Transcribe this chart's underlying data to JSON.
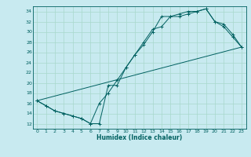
{
  "xlabel": "Humidex (Indice chaleur)",
  "bg_color": "#c8eaf0",
  "line_color": "#006060",
  "grid_color": "#a8d8cc",
  "xlim": [
    -0.5,
    23.5
  ],
  "ylim": [
    11,
    35
  ],
  "xticks": [
    0,
    1,
    2,
    3,
    4,
    5,
    6,
    7,
    8,
    9,
    10,
    11,
    12,
    13,
    14,
    15,
    16,
    17,
    18,
    19,
    20,
    21,
    22,
    23
  ],
  "yticks": [
    12,
    14,
    16,
    18,
    20,
    22,
    24,
    26,
    28,
    30,
    32,
    34
  ],
  "series1": {
    "x": [
      0,
      1,
      2,
      3,
      4,
      5,
      6,
      7,
      8,
      9,
      10,
      11,
      12,
      13,
      14,
      15,
      16,
      17,
      18,
      19,
      20,
      21,
      22,
      23
    ],
    "y": [
      16.5,
      15.5,
      14.5,
      14.0,
      13.5,
      13.0,
      12.0,
      12.0,
      19.5,
      19.5,
      23.0,
      25.5,
      28.0,
      30.5,
      31.0,
      33.0,
      33.0,
      33.5,
      34.0,
      34.5,
      32.0,
      31.0,
      29.0,
      27.0
    ]
  },
  "series2": {
    "x": [
      0,
      1,
      2,
      3,
      4,
      5,
      6,
      7,
      8,
      9,
      10,
      11,
      12,
      13,
      14,
      15,
      16,
      17,
      18,
      19,
      20,
      21,
      22,
      23
    ],
    "y": [
      16.5,
      15.5,
      14.5,
      14.0,
      13.5,
      13.0,
      12.0,
      16.0,
      18.0,
      20.5,
      23.0,
      25.5,
      27.5,
      30.0,
      33.0,
      33.0,
      33.5,
      34.0,
      34.0,
      34.5,
      32.0,
      31.5,
      29.5,
      27.0
    ]
  },
  "series3": {
    "x": [
      0,
      23
    ],
    "y": [
      16.5,
      27.0
    ]
  }
}
